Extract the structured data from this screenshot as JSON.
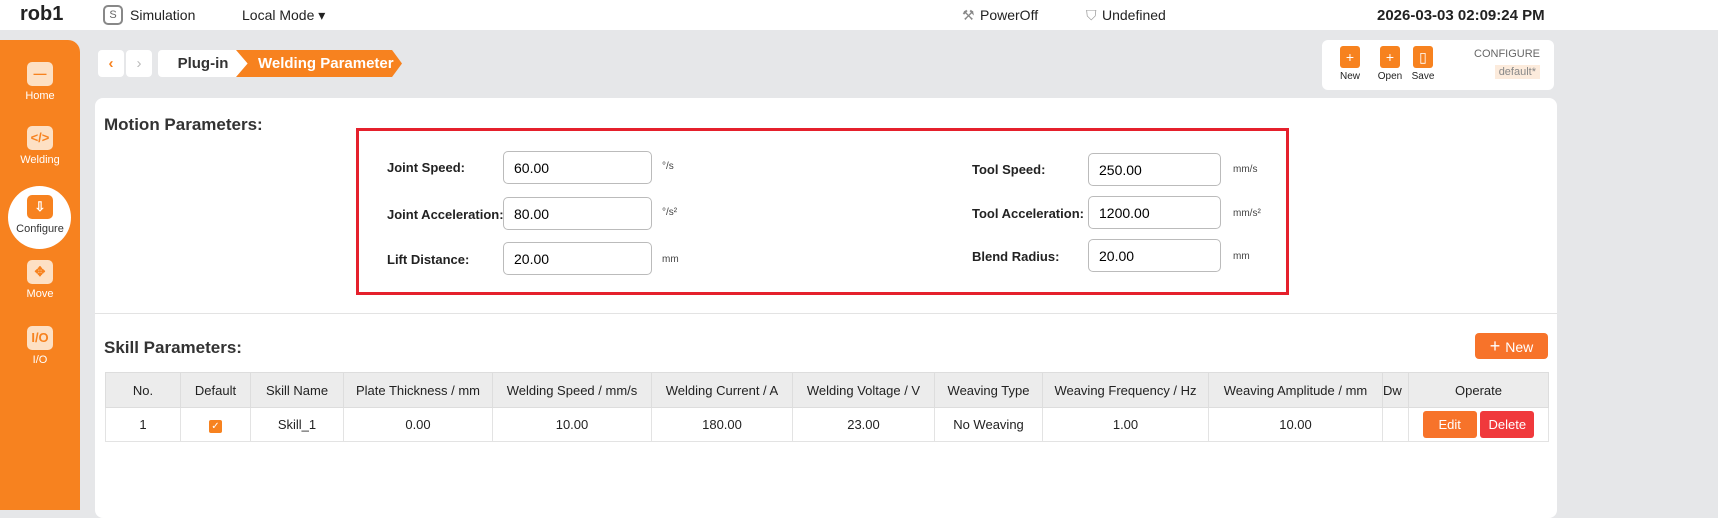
{
  "topbar": {
    "robot": "rob1",
    "mode": "Simulation",
    "control": "Local Mode",
    "power": "PowerOff",
    "safety": "Undefined",
    "datetime": "2026-03-03 02:09:24 PM"
  },
  "sidebar": {
    "items": [
      {
        "label": "Home",
        "icon": "home-icon"
      },
      {
        "label": "Welding",
        "icon": "welding-icon"
      },
      {
        "label": "Configure",
        "icon": "configure-icon",
        "active": true
      },
      {
        "label": "Move",
        "icon": "move-icon"
      },
      {
        "label": "I/O",
        "icon": "io-icon"
      }
    ]
  },
  "breadcrumb": [
    "Plug-in",
    "Welding Parameter"
  ],
  "config": {
    "new": "New",
    "open": "Open",
    "save": "Save",
    "title": "CONFIGURE",
    "name": "default*"
  },
  "motion": {
    "title": "Motion Parameters:",
    "fields": [
      {
        "label": "Joint Speed:",
        "value": "60.00",
        "unit": "°/s"
      },
      {
        "label": "Joint Acceleration:",
        "value": "80.00",
        "unit": "°/s²"
      },
      {
        "label": "Lift Distance:",
        "value": "20.00",
        "unit": "mm"
      },
      {
        "label": "Tool Speed:",
        "value": "250.00",
        "unit": "mm/s"
      },
      {
        "label": "Tool Acceleration:",
        "value": "1200.00",
        "unit": "mm/s²"
      },
      {
        "label": "Blend Radius:",
        "value": "20.00",
        "unit": "mm"
      }
    ]
  },
  "skill": {
    "title": "Skill Parameters:",
    "new_label": "New",
    "columns": [
      "No.",
      "Default",
      "Skill Name",
      "Plate Thickness / mm",
      "Welding Speed / mm/s",
      "Welding Current / A",
      "Welding Voltage / V",
      "Weaving Type",
      "Weaving Frequency / Hz",
      "Weaving Amplitude / mm",
      "Dw",
      "Operate"
    ],
    "rows": [
      {
        "no": "1",
        "default": true,
        "name": "Skill_1",
        "plate": "0.00",
        "speed": "10.00",
        "current": "180.00",
        "voltage": "23.00",
        "weaving": "No Weaving",
        "freq": "1.00",
        "amp": "10.00",
        "dw": "",
        "edit": "Edit",
        "delete": "Delete"
      }
    ]
  },
  "colors": {
    "accent": "#f7821f",
    "highlight": "#e5202c",
    "delete": "#f0393c"
  }
}
